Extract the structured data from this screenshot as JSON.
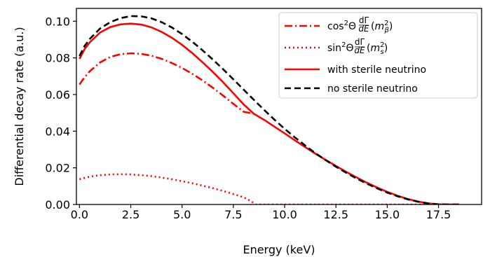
{
  "chart_data": {
    "type": "line",
    "xlabel": "Energy (keV)",
    "ylabel": "Differential decay rate (a.u.)",
    "xlim": [
      -0.15,
      19.6
    ],
    "ylim": [
      0.0,
      0.107
    ],
    "x_ticks": [
      "0.0",
      "2.5",
      "5.0",
      "7.5",
      "10.0",
      "12.5",
      "15.0",
      "17.5"
    ],
    "x_tick_values": [
      0,
      2.5,
      5,
      7.5,
      10,
      12.5,
      15,
      17.5
    ],
    "y_ticks": [
      "0.00",
      "0.02",
      "0.04",
      "0.06",
      "0.08",
      "0.10"
    ],
    "y_tick_values": [
      0,
      0.02,
      0.04,
      0.06,
      0.08,
      0.1
    ],
    "grid": false,
    "legend_position": "top-right",
    "series": [
      {
        "name": "cos²Θ dΓ/dE (m_β²)",
        "color": "#ff0000",
        "style": "dashdot",
        "x": [
          0,
          0.25,
          0.5,
          1,
          1.5,
          2,
          2.5,
          3,
          3.5,
          4,
          4.5,
          5,
          5.5,
          6,
          6.5,
          7,
          7.5,
          8,
          8.5
        ],
        "y": [
          0.0655,
          0.0695,
          0.0727,
          0.0775,
          0.0805,
          0.082,
          0.0825,
          0.0822,
          0.0812,
          0.0795,
          0.0772,
          0.0745,
          0.0713,
          0.0677,
          0.0637,
          0.0594,
          0.0549,
          0.0506,
          0.0495
        ]
      },
      {
        "name": "sin²Θ dΓ/dE (m_s²)",
        "color": "#ff0000",
        "style": "dotted",
        "x": [
          0,
          0.5,
          1,
          1.5,
          2,
          2.5,
          3,
          3.5,
          4,
          4.5,
          5,
          5.5,
          6,
          6.5,
          7,
          7.5,
          8,
          8.3,
          8.6,
          9,
          10,
          11,
          12,
          13,
          14,
          15,
          16,
          17,
          18.5
        ],
        "y": [
          0.0138,
          0.0152,
          0.016,
          0.0164,
          0.0165,
          0.0164,
          0.016,
          0.0155,
          0.0147,
          0.0138,
          0.0127,
          0.0116,
          0.0103,
          0.0089,
          0.0074,
          0.0057,
          0.0039,
          0.0022,
          0.0,
          0.0,
          0.0,
          0.0,
          0.0,
          0.0,
          0.0,
          0.0,
          0.0,
          0.0,
          0.0
        ]
      },
      {
        "name": "with sterile neutrino",
        "color": "#ff0000",
        "style": "solid",
        "x": [
          0,
          0.25,
          0.5,
          1,
          1.5,
          2,
          2.5,
          3,
          3.5,
          4,
          4.5,
          5,
          5.5,
          6,
          6.5,
          7,
          7.5,
          8,
          8.5,
          9,
          9.5,
          10,
          10.5,
          11,
          11.5,
          12,
          12.5,
          13,
          13.5,
          14,
          14.5,
          15,
          15.5,
          16,
          16.5,
          17,
          17.5,
          18,
          18.5
        ],
        "y": [
          0.0795,
          0.0848,
          0.0885,
          0.0938,
          0.0968,
          0.0983,
          0.0987,
          0.0982,
          0.0967,
          0.0942,
          0.091,
          0.0871,
          0.0826,
          0.0776,
          0.0723,
          0.0667,
          0.0607,
          0.0546,
          0.0495,
          0.0462,
          0.0425,
          0.0388,
          0.035,
          0.0313,
          0.0277,
          0.0243,
          0.021,
          0.0178,
          0.0148,
          0.0119,
          0.0093,
          0.0069,
          0.0048,
          0.003,
          0.0016,
          0.0006,
          0.0001,
          0.0,
          0.0
        ]
      },
      {
        "name": "no sterile neutrino",
        "color": "#000000",
        "style": "dashed",
        "x": [
          0,
          0.25,
          0.5,
          1,
          1.5,
          2,
          2.5,
          3,
          3.5,
          4,
          4.5,
          5,
          5.5,
          6,
          6.5,
          7,
          7.5,
          8,
          8.5,
          9,
          9.5,
          10,
          10.5,
          11,
          11.5,
          12,
          12.5,
          13,
          13.5,
          14,
          14.5,
          15,
          15.5,
          16,
          16.5,
          17,
          17.5,
          18,
          18.6
        ],
        "y": [
          0.081,
          0.0865,
          0.0903,
          0.096,
          0.0995,
          0.1017,
          0.1028,
          0.1027,
          0.1016,
          0.0995,
          0.0966,
          0.093,
          0.0888,
          0.0841,
          0.0791,
          0.0738,
          0.0683,
          0.0627,
          0.0571,
          0.0516,
          0.0463,
          0.0413,
          0.0366,
          0.0322,
          0.028,
          0.0242,
          0.0206,
          0.0173,
          0.0142,
          0.0114,
          0.0088,
          0.0065,
          0.0045,
          0.0028,
          0.0015,
          0.0006,
          0.0001,
          0.0,
          0.0
        ]
      }
    ]
  }
}
